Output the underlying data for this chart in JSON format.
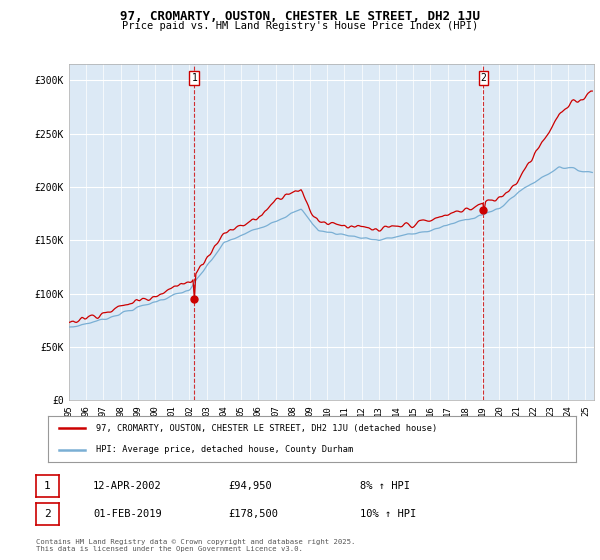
{
  "title": "97, CROMARTY, OUSTON, CHESTER LE STREET, DH2 1JU",
  "subtitle": "Price paid vs. HM Land Registry's House Price Index (HPI)",
  "ylabel_ticks": [
    "£0",
    "£50K",
    "£100K",
    "£150K",
    "£200K",
    "£250K",
    "£300K"
  ],
  "ytick_values": [
    0,
    50000,
    100000,
    150000,
    200000,
    250000,
    300000
  ],
  "ylim": [
    0,
    315000
  ],
  "xlim_start": 1995.0,
  "xlim_end": 2025.5,
  "marker1_x": 2002.28,
  "marker1_y": 94950,
  "marker2_x": 2019.08,
  "marker2_y": 178500,
  "red_color": "#cc0000",
  "blue_color": "#7aafd4",
  "legend1": "97, CROMARTY, OUSTON, CHESTER LE STREET, DH2 1JU (detached house)",
  "legend2": "HPI: Average price, detached house, County Durham",
  "annotation1_date": "12-APR-2002",
  "annotation1_price": "£94,950",
  "annotation1_hpi": "8% ↑ HPI",
  "annotation2_date": "01-FEB-2019",
  "annotation2_price": "£178,500",
  "annotation2_hpi": "10% ↑ HPI",
  "footer": "Contains HM Land Registry data © Crown copyright and database right 2025.\nThis data is licensed under the Open Government Licence v3.0.",
  "plot_bg_color": "#dce9f5",
  "fig_bg_color": "#ffffff"
}
